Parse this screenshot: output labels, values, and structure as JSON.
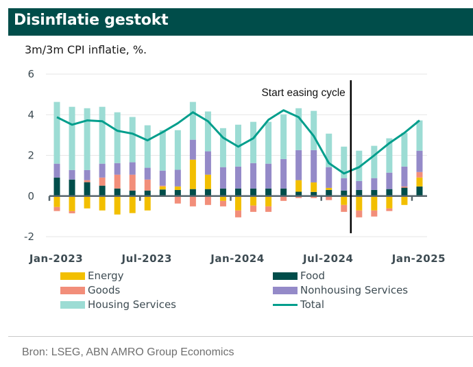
{
  "header": {
    "title": "Disinflatie gestokt",
    "subtitle": "3m/3m CPI inflatie, %."
  },
  "footer": {
    "source": "Bron:  LSEG, ABN AMRO Group Economics"
  },
  "colors": {
    "title_bg": "#004d4a",
    "energy": "#f2bf00",
    "goods": "#f28e7a",
    "housing": "#9cdcd4",
    "food": "#004d4a",
    "nonhousing": "#948ac8",
    "total": "#009e8c",
    "axis": "#56656c",
    "grid": "#e6e6e6"
  },
  "chart_data": {
    "type": "bar",
    "stacked": true,
    "title": "Disinflatie gestokt",
    "subtitle": "3m/3m CPI inflatie, %.",
    "xlabel": "",
    "ylabel": "",
    "ylim": [
      -2,
      6
    ],
    "yticks": [
      6,
      4,
      2,
      0,
      -2
    ],
    "ytick_labels": [
      "6",
      "4",
      "2",
      "0",
      "-2"
    ],
    "grid": true,
    "legend_position": "bottom",
    "xtick_labels": [
      "Jan-2023",
      "Jul-2023",
      "Jan-2024",
      "Jul-2024",
      "Jan-2025"
    ],
    "x": [
      "2023-01",
      "2023-02",
      "2023-03",
      "2023-04",
      "2023-05",
      "2023-06",
      "2023-07",
      "2023-08",
      "2023-09",
      "2023-10",
      "2023-11",
      "2023-12",
      "2024-01",
      "2024-02",
      "2024-03",
      "2024-04",
      "2024-05",
      "2024-06",
      "2024-07",
      "2024-08",
      "2024-09",
      "2024-10",
      "2024-11",
      "2024-12",
      "2025-01"
    ],
    "annotation": {
      "text": "Start easing cycle",
      "x": "2024-09"
    },
    "series": [
      {
        "name": "Food",
        "key": "food",
        "kind": "bar",
        "values": [
          0.91,
          0.81,
          0.68,
          0.51,
          0.37,
          0.27,
          0.27,
          0.32,
          0.3,
          0.34,
          0.34,
          0.37,
          0.37,
          0.37,
          0.37,
          0.37,
          0.21,
          0.2,
          0.3,
          0.27,
          0.3,
          0.3,
          0.34,
          0.41,
          0.47
        ]
      },
      {
        "name": "Energy",
        "key": "energy",
        "kind": "bar",
        "values": [
          -0.54,
          -0.74,
          -0.61,
          -0.71,
          -0.91,
          -0.84,
          -0.71,
          0.15,
          0.17,
          1.45,
          0.71,
          -0.24,
          -0.71,
          -0.47,
          -0.51,
          0.0,
          0.57,
          0.47,
          0.1,
          -0.44,
          -0.71,
          -0.71,
          -0.61,
          -0.44,
          0.44
        ]
      },
      {
        "name": "Goods",
        "key": "goods",
        "kind": "bar",
        "values": [
          -0.2,
          -0.11,
          0.1,
          0.4,
          0.68,
          0.78,
          0.54,
          0.04,
          -0.37,
          -0.51,
          -0.44,
          -0.27,
          -0.34,
          -0.31,
          -0.27,
          -0.24,
          -0.1,
          -0.1,
          -0.2,
          -0.34,
          -0.34,
          -0.3,
          -0.13,
          0.06,
          0.27
        ]
      },
      {
        "name": "Nonhousing Services",
        "key": "nonhousing",
        "kind": "bar",
        "values": [
          0.68,
          0.47,
          0.5,
          0.68,
          0.57,
          0.61,
          0.58,
          0.74,
          0.82,
          0.98,
          1.15,
          1.05,
          1.08,
          1.25,
          1.22,
          1.45,
          1.48,
          1.59,
          1.02,
          0.61,
          0.44,
          0.58,
          0.81,
          0.98,
          1.05
        ]
      },
      {
        "name": "Housing Services",
        "key": "housing",
        "kind": "bar",
        "values": [
          3.04,
          3.11,
          3.04,
          2.8,
          2.5,
          2.23,
          2.09,
          1.99,
          1.95,
          1.86,
          1.96,
          1.92,
          2.06,
          2.03,
          2.06,
          2.2,
          2.06,
          1.93,
          1.65,
          1.55,
          1.49,
          1.59,
          1.69,
          1.66,
          1.49
        ]
      },
      {
        "name": "Total",
        "key": "total",
        "kind": "line",
        "values": [
          3.88,
          3.51,
          3.72,
          3.68,
          3.21,
          3.07,
          2.74,
          3.14,
          3.58,
          4.12,
          3.68,
          2.87,
          2.43,
          2.84,
          3.75,
          4.22,
          3.88,
          2.95,
          1.62,
          1.11,
          1.42,
          2.0,
          2.6,
          3.11,
          3.72
        ]
      }
    ]
  },
  "legend": [
    {
      "label": "Energy",
      "key": "energy",
      "type": "box"
    },
    {
      "label": "Food",
      "key": "food",
      "type": "box"
    },
    {
      "label": "Goods",
      "key": "goods",
      "type": "box"
    },
    {
      "label": "Nonhousing Services",
      "key": "nonhousing",
      "type": "box"
    },
    {
      "label": "Housing Services",
      "key": "housing",
      "type": "box"
    },
    {
      "label": "Total",
      "key": "total",
      "type": "line"
    }
  ]
}
